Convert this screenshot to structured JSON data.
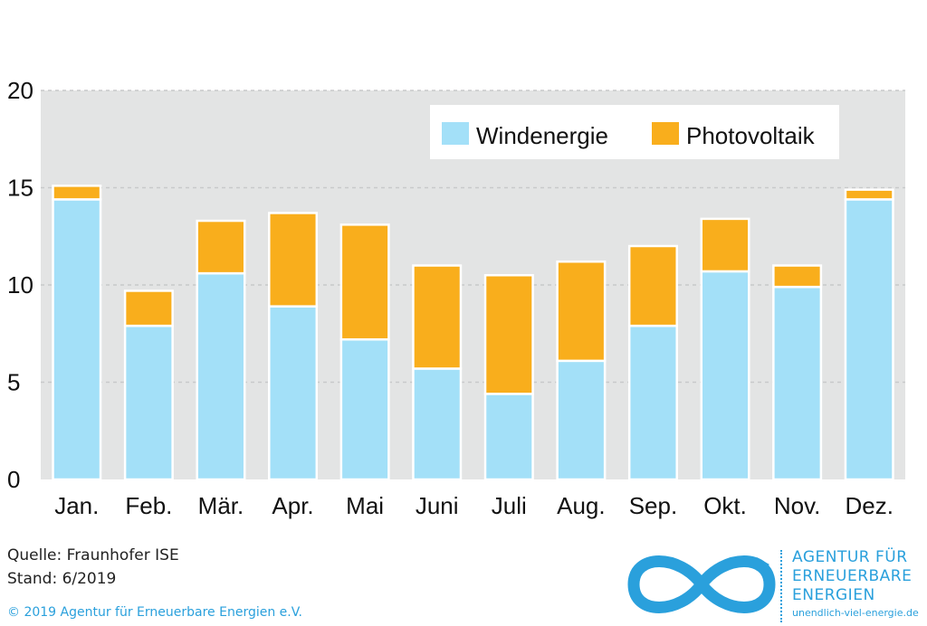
{
  "chart_data": {
    "type": "bar",
    "stacked": true,
    "categories": [
      "Jan.",
      "Feb.",
      "Mär.",
      "Apr.",
      "Mai",
      "Juni",
      "Juli",
      "Aug.",
      "Sep.",
      "Okt.",
      "Nov.",
      "Dez."
    ],
    "series": [
      {
        "name": "Windenergie",
        "color": "#a3e0f8",
        "values": [
          14.4,
          7.9,
          10.6,
          8.9,
          7.2,
          5.7,
          4.4,
          6.1,
          7.9,
          10.7,
          9.9,
          14.4
        ]
      },
      {
        "name": "Photovoltaik",
        "color": "#f9ae1c",
        "values": [
          0.7,
          1.8,
          2.7,
          4.8,
          5.9,
          5.3,
          6.1,
          5.1,
          4.1,
          2.7,
          1.1,
          0.5
        ]
      }
    ],
    "yticks": [
      "0",
      "5",
      "10",
      "15",
      "20"
    ],
    "ylim": [
      0,
      20
    ],
    "grid": true,
    "legend_position": "top-right",
    "plot_background": "#e3e4e4",
    "gridline_color": "#c8c9ca"
  },
  "footer": {
    "source": "Quelle: Fraunhofer ISE",
    "stand": "Stand: 6/2019",
    "copyright": "© 2019 Agentur für Erneuerbare Energien e.V."
  },
  "logo": {
    "line1": "AGENTUR FÜR",
    "line2": "ERNEUERBARE",
    "line3": "ENERGIEN",
    "url": "unendlich-viel-energie.de",
    "color": "#2aa0dc"
  }
}
